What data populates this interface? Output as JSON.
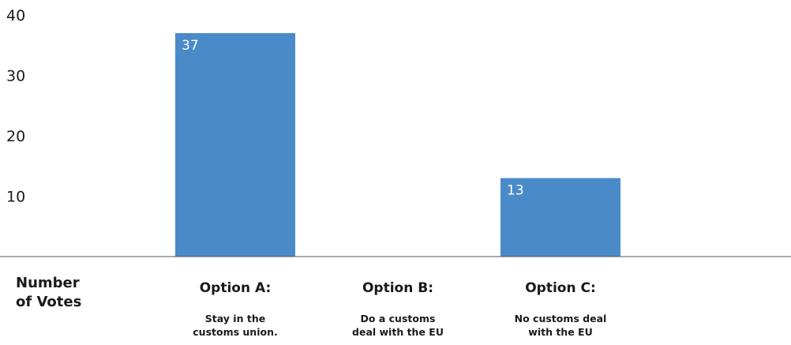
{
  "chart_data": {
    "type": "bar",
    "categories": [
      {
        "title": "Option A:",
        "description": [
          "Stay in the",
          "customs union."
        ]
      },
      {
        "title": "Option B:",
        "description": [
          "Do a customs",
          "deal with the EU"
        ]
      },
      {
        "title": "Option C:",
        "description": [
          "No customs deal",
          "with the EU"
        ]
      }
    ],
    "values": [
      37,
      null,
      13
    ],
    "data_labels": [
      "37",
      "",
      "13"
    ],
    "ylabel": [
      "Number",
      "of Votes"
    ],
    "yticks": [
      10,
      20,
      30,
      40
    ],
    "ylim": [
      0,
      40
    ],
    "grid": false,
    "bar_color": "#4a8ac9"
  }
}
